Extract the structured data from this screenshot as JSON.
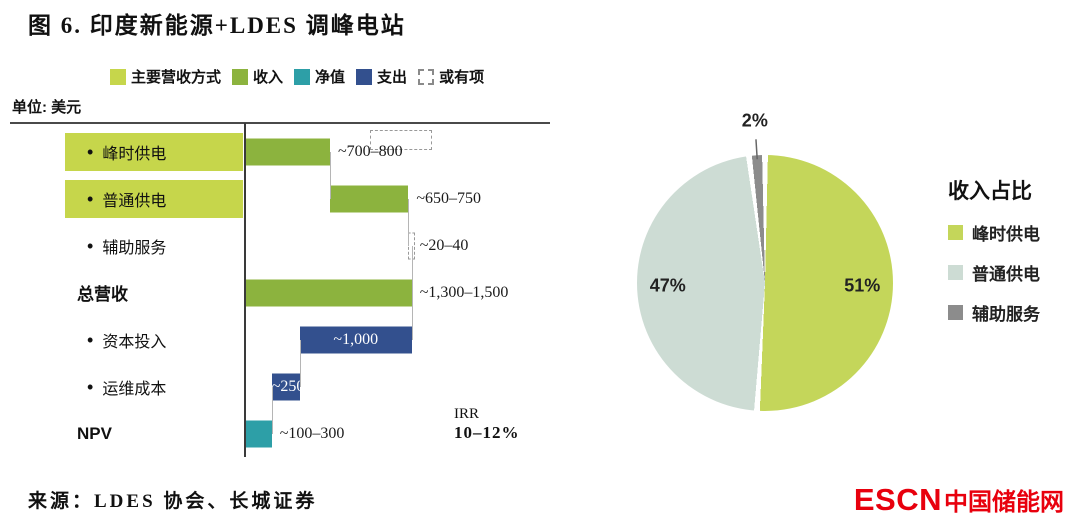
{
  "title": "图 6. 印度新能源+LDES 调峰电站",
  "source": "来源：LDES 协会、长城证券",
  "logo": {
    "escn": "ESCN",
    "cn": "中国储能网"
  },
  "waterfall": {
    "unit_label": "单位: 美元",
    "irr_label": "IRR",
    "irr_value": "10–12%",
    "legend": [
      {
        "label": "主要营收方式",
        "color": "#c6d64b",
        "style": "solid"
      },
      {
        "label": "收入",
        "color": "#8cb33e",
        "style": "solid"
      },
      {
        "label": "净值",
        "color": "#2d9fa7",
        "style": "solid"
      },
      {
        "label": "支出",
        "color": "#33508e",
        "style": "solid"
      },
      {
        "label": "或有项",
        "color": "#ffffff",
        "style": "dashed"
      }
    ],
    "colors": {
      "highlight": "#c6d64b",
      "revenue": "#8cb33e",
      "expense": "#33508e",
      "net": "#2d9fa7"
    }
  },
  "chart_data": [
    {
      "type": "bar",
      "subtype": "horizontal-waterfall",
      "unit": "美元",
      "categories": [
        "峰时供电",
        "普通供电",
        "辅助服务",
        "总营收",
        "资本投入",
        "运维成本",
        "NPV"
      ],
      "values": [
        750,
        700,
        30,
        1400,
        -1000,
        -250,
        200
      ],
      "value_labels": [
        "~700–800",
        "~650–750",
        "~20–40",
        "~1,300–1,500",
        "~1,000",
        "~250",
        "~100–300"
      ],
      "roles": [
        "revenue",
        "revenue",
        "contingent",
        "total",
        "expense",
        "expense",
        "net"
      ],
      "row_styles": [
        "highlight-bullet",
        "highlight-bullet",
        "bullet",
        "bold",
        "bullet",
        "bullet",
        "bold"
      ],
      "annotations": [
        {
          "label": "IRR",
          "value": "10–12%"
        }
      ],
      "legend": [
        "主要营收方式",
        "收入",
        "净值",
        "支出",
        "或有项"
      ]
    },
    {
      "type": "pie",
      "title": "收入占比",
      "labels": [
        "峰时供电",
        "普通供电",
        "辅助服务"
      ],
      "values": [
        51,
        47,
        2
      ],
      "unit": "%",
      "colors": [
        "#c4d65a",
        "#cddcd4",
        "#8c8c8c"
      ],
      "legend_position": "right"
    }
  ]
}
